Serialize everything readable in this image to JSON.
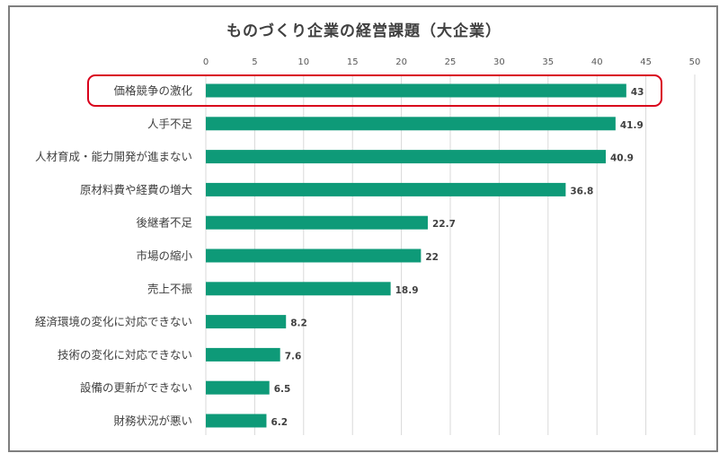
{
  "chart_data": {
    "type": "bar",
    "orientation": "horizontal",
    "title": "ものづくり企業の経営課題（大企業）",
    "xlabel": "",
    "ylabel": "",
    "xlim": [
      0,
      50
    ],
    "x_ticks": [
      0,
      5,
      10,
      15,
      20,
      25,
      30,
      35,
      40,
      45,
      50
    ],
    "grid": true,
    "categories": [
      "価格競争の激化",
      "人手不足",
      "人材育成・能力開発が進まない",
      "原材料費や経費の増大",
      "後継者不足",
      "市場の縮小",
      "売上不振",
      "経済環境の変化に対応できない",
      "技術の変化に対応できない",
      "設備の更新ができない",
      "財務状況が悪い"
    ],
    "values": [
      43,
      41.9,
      40.9,
      36.8,
      22.7,
      22,
      18.9,
      8.2,
      7.6,
      6.5,
      6.2
    ],
    "highlighted_category": "価格競争の激化",
    "colors": {
      "bar": "#0e9a78",
      "highlight_box": "#d9001b",
      "grid": "#d9d9d9",
      "text": "#404040"
    }
  }
}
